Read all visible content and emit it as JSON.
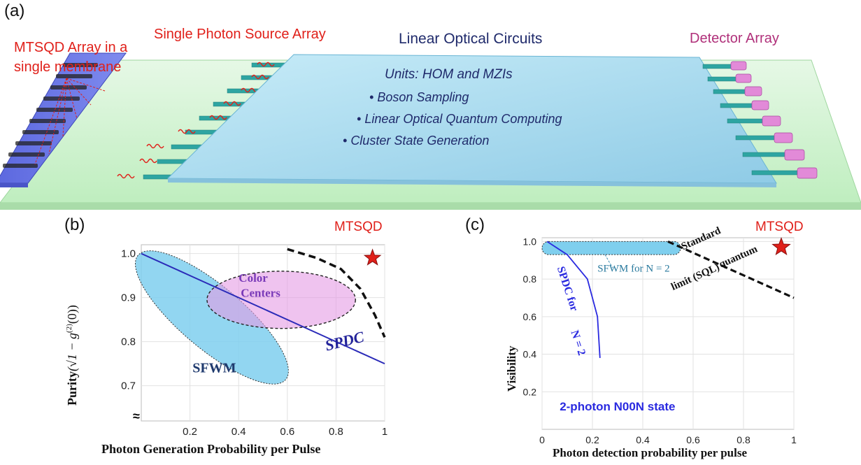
{
  "panel_a": {
    "label": "(a)",
    "mtsqd_array_label_line1": "MTSQD Array in a",
    "mtsqd_array_label_line2": "single membrane",
    "single_photon_source": "Single Photon Source Array",
    "linear_optical_circuits": "Linear Optical Circuits",
    "detector_array": "Detector Array",
    "units_title": "Units: HOM and MZIs",
    "bullets": [
      "Boson Sampling",
      "Linear Optical Quantum Computing",
      "Cluster State Generation"
    ],
    "colors": {
      "membrane": "#6c78e6",
      "chip": "#c9f0c9",
      "circuit": "#a6d8ee",
      "waveguide": "#2ea5a2",
      "detector": "#e28ad8",
      "red": "#e0201a",
      "navy": "#1f2a6b"
    }
  },
  "panel_b": {
    "label": "(b)",
    "star_label": "MTSQD",
    "ylabel": "Purity",
    "ylabel_formula": "(√1 − g",
    "ylabel_sup": "(2)",
    "ylabel_end": "(0))",
    "xlabel": "Photon Generation Probability per Pulse",
    "xticks": [
      "0.2",
      "0.4",
      "0.6",
      "0.8",
      "1"
    ],
    "yticks": [
      "1.0",
      "0.9",
      "0.8",
      "0.7"
    ],
    "regions": {
      "color_centers_1": "Color",
      "color_centers_2": "Centers",
      "sfwm": "SFWM",
      "spdc": "SPDC"
    },
    "axis_break": "≈"
  },
  "panel_c": {
    "label": "(c)",
    "star_label": "MTSQD",
    "ylabel": "Visibility",
    "xlabel": "Photon detection probability per pulse",
    "xticks": [
      "0",
      "0.2",
      "0.4",
      "0.6",
      "0.8",
      "1"
    ],
    "yticks": [
      "1.0",
      "0.8",
      "0.6",
      "0.4",
      "0.2"
    ],
    "sfwm_label": "SFWM for N = 2",
    "spdc_label_1": "SPDC for",
    "spdc_label_2": "N = 2",
    "sql_1": "Standard",
    "sql_2": "quantum",
    "sql_3": "limit (SQL)",
    "state_label": "2-photon N00N state"
  },
  "chart_data": [
    {
      "type": "area",
      "xlabel": "Photon Generation Probability per Pulse",
      "ylabel": "Purity (√1 − g(2)(0))",
      "xlim": [
        0,
        1
      ],
      "ylim": [
        0.62,
        1.02
      ],
      "series": [
        {
          "name": "SPDC",
          "x": [
            0,
            0.2,
            0.4,
            0.6,
            0.8,
            1.0
          ],
          "values": [
            1.0,
            0.95,
            0.9,
            0.85,
            0.8,
            0.75
          ]
        },
        {
          "name": "Color Centers",
          "x": [
            0.27,
            0.88
          ],
          "values": [
            0.83,
            0.96
          ]
        },
        {
          "name": "SFWM",
          "x": [
            0.0,
            0.58
          ],
          "values": [
            0.72,
            0.99
          ]
        },
        {
          "name": "MTSQD",
          "x": [
            0.95
          ],
          "values": [
            0.99
          ]
        }
      ]
    },
    {
      "type": "line",
      "xlabel": "Photon detection probability per pulse",
      "ylabel": "Visibility",
      "xlim": [
        0,
        1
      ],
      "ylim": [
        0,
        1.02
      ],
      "series": [
        {
          "name": "SPDC for N = 2",
          "x": [
            0.02,
            0.1,
            0.18,
            0.22,
            0.23
          ],
          "values": [
            1.0,
            0.93,
            0.8,
            0.6,
            0.38
          ]
        },
        {
          "name": "Standard quantum limit (SQL)",
          "x": [
            0.5,
            0.6,
            0.7,
            0.8,
            0.9,
            1.0
          ],
          "values": [
            1.0,
            0.94,
            0.88,
            0.82,
            0.76,
            0.7
          ]
        },
        {
          "name": "SFWM for N = 2",
          "x": [
            0.0,
            0.55
          ],
          "values": [
            0.93,
            1.0
          ]
        },
        {
          "name": "MTSQD",
          "x": [
            0.95
          ],
          "values": [
            0.97
          ]
        }
      ]
    }
  ]
}
